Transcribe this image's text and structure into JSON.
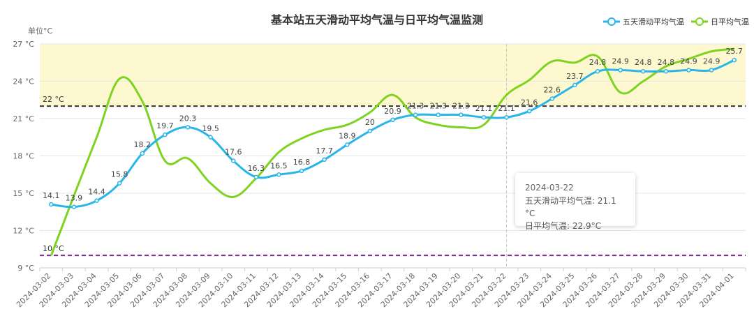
{
  "chart_data": {
    "type": "line",
    "title": "基本站五天滑动平均气温与日平均气温监测",
    "unit_label": "单位°C",
    "y_unit": "°C",
    "ylim": [
      9,
      27
    ],
    "yticks": [
      9,
      12,
      15,
      18,
      21,
      24,
      27
    ],
    "categories": [
      "2024-03-02",
      "2024-03-03",
      "2024-03-04",
      "2024-03-05",
      "2024-03-06",
      "2024-03-07",
      "2024-03-08",
      "2024-03-09",
      "2024-03-10",
      "2024-03-11",
      "2024-03-12",
      "2024-03-13",
      "2024-03-14",
      "2024-03-15",
      "2024-03-16",
      "2024-03-17",
      "2024-03-18",
      "2024-03-19",
      "2024-03-20",
      "2024-03-21",
      "2024-03-22",
      "2024-03-23",
      "2024-03-24",
      "2024-03-25",
      "2024-03-26",
      "2024-03-27",
      "2024-03-28",
      "2024-03-29",
      "2024-03-30",
      "2024-03-31",
      "2024-04-01"
    ],
    "series": [
      {
        "name": "五天滑动平均气温",
        "color": "#2ab5ea",
        "values": [
          14.1,
          13.9,
          14.4,
          15.8,
          18.2,
          19.7,
          20.3,
          19.5,
          17.6,
          16.3,
          16.5,
          16.8,
          17.7,
          18.9,
          20,
          20.9,
          21.3,
          21.3,
          21.3,
          21.1,
          21.1,
          21.6,
          22.6,
          23.7,
          24.8,
          24.9,
          24.8,
          24.8,
          24.9,
          24.9,
          25.7
        ],
        "labels": [
          "14.1",
          "13.9",
          "14.4",
          "15.8",
          "18.2",
          "19.7",
          "20.3",
          "19.5",
          "17.6",
          "16.3",
          "16.5",
          "16.8",
          "17.7",
          "18.9",
          "20",
          "20.9",
          "21.3",
          "21.3",
          "21.3",
          "21.1",
          "21.1",
          "21.6",
          "22.6",
          "23.7",
          "24.8",
          "24.9",
          "24.8",
          "24.8",
          "24.9",
          "24.9",
          "25.7"
        ]
      },
      {
        "name": "日平均气温",
        "color": "#7ed321",
        "values": [
          10,
          14.8,
          19.5,
          24.2,
          22.4,
          17.6,
          17.8,
          15.8,
          14.7,
          16.2,
          18.3,
          19.4,
          20.1,
          20.5,
          21.5,
          22.9,
          21.1,
          20.5,
          20.3,
          20.5,
          22.9,
          24.1,
          25.6,
          25.5,
          26,
          23.1,
          24,
          25.2,
          25.8,
          26.4,
          26.6
        ]
      }
    ],
    "reference_lines": [
      {
        "value": 22,
        "label": "22 °C",
        "color": "#333333"
      },
      {
        "value": 10,
        "label": "10 °C",
        "color": "#7b2d8e"
      }
    ],
    "highlight_band": {
      "from": 22,
      "to": 27,
      "color": "#fdf8d0"
    },
    "grid": true,
    "legend_position": "top-right",
    "tooltip": {
      "date": "2024-03-22",
      "line1": "五天滑动平均气温: 21.1 °C",
      "line2": "日平均气温: 22.9°C"
    }
  }
}
